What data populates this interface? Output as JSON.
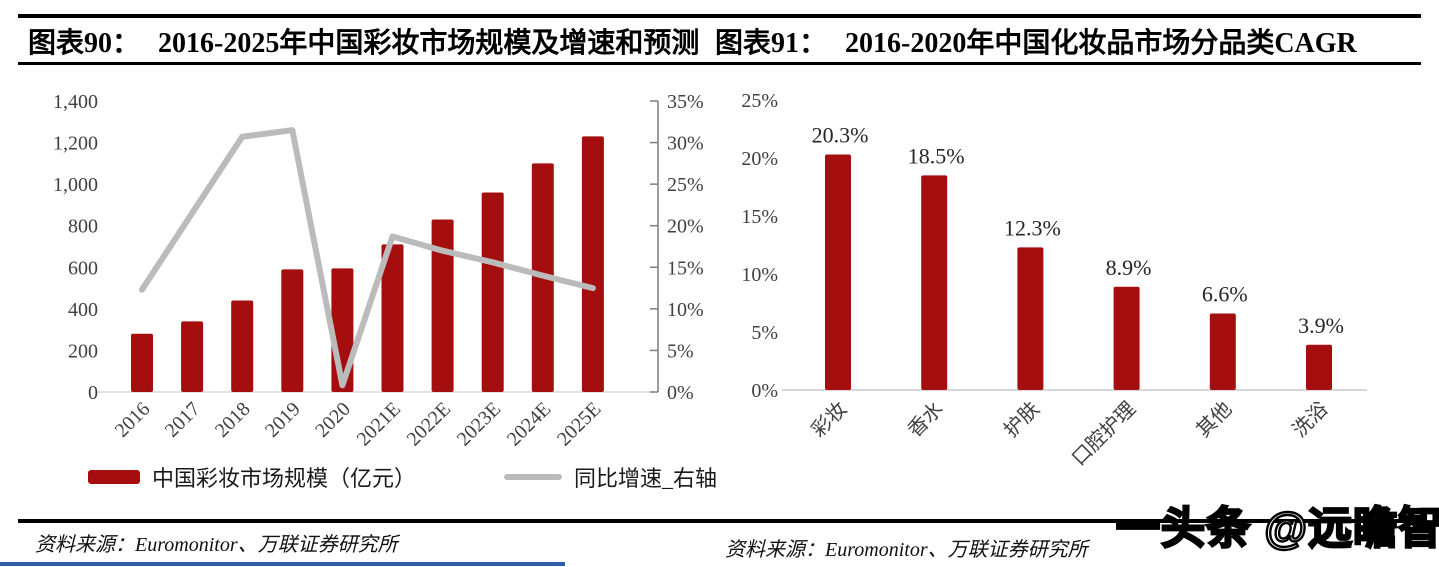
{
  "header": {
    "left_title_label": "图表90：",
    "left_title_text": "2016-2025年中国彩妆市场规模及增速和预测",
    "right_title_label": "图表91：",
    "right_title_text": "2016-2020年中国化妆品市场分品类CAGR"
  },
  "footer": {
    "left_source": "资料来源：Euromonitor、万联证券研究所",
    "right_source": "资料来源：Euromonitor、万联证券研究所",
    "watermark": "一头条 @远瞻智库"
  },
  "colors": {
    "bar_red": "#A40E0E",
    "line_gray": "#BBBBBB",
    "axis_text": "#404040",
    "axis_line": "#7F7F7F",
    "baseline_gray": "#D9D9D9",
    "rule_black": "#000000",
    "bottom_blue": "#2E5FA3"
  },
  "chart_data": [
    {
      "type": "combo-bar-line",
      "title": "2016-2025年中国彩妆市场规模及增速和预测",
      "categories": [
        "2016",
        "2017",
        "2018",
        "2019",
        "2020",
        "2021E",
        "2022E",
        "2023E",
        "2024E",
        "2025E"
      ],
      "series": [
        {
          "name": "中国彩妆市场规模（亿元）",
          "type": "bar",
          "axis": "left",
          "color": "#A40E0E",
          "values": [
            280,
            340,
            440,
            590,
            595,
            710,
            830,
            960,
            1100,
            1230
          ]
        },
        {
          "name": "同比增速_右轴",
          "type": "line",
          "axis": "right",
          "color": "#BBBBBB",
          "values": [
            12.3,
            21.5,
            30.7,
            31.5,
            0.8,
            18.7,
            17.0,
            15.6,
            14.0,
            12.5
          ]
        }
      ],
      "left_axis": {
        "min": 0,
        "max": 1400,
        "step": 200,
        "tick_labels": [
          "1,400",
          "1,200",
          "1,000",
          "800",
          "600",
          "400",
          "200",
          "0"
        ]
      },
      "right_axis": {
        "min": 0,
        "max": 35,
        "step": 5,
        "tick_labels": [
          "35%",
          "30%",
          "25%",
          "20%",
          "15%",
          "10%",
          "5%",
          "0%"
        ]
      },
      "legend_position": "bottom",
      "grid": false
    },
    {
      "type": "bar",
      "title": "2016-2020年中国化妆品市场分品类CAGR",
      "categories": [
        "彩妆",
        "香水",
        "护肤",
        "口腔护理",
        "其他",
        "洗浴"
      ],
      "values": [
        20.3,
        18.5,
        12.3,
        8.9,
        6.6,
        3.9
      ],
      "data_labels": [
        "20.3%",
        "18.5%",
        "12.3%",
        "8.9%",
        "6.6%",
        "3.9%"
      ],
      "bar_color": "#A40E0E",
      "y_axis": {
        "min": 0,
        "max": 25,
        "step": 5,
        "tick_labels": [
          "25%",
          "20%",
          "15%",
          "10%",
          "5%",
          "0%"
        ]
      },
      "legend_position": "none",
      "grid": false
    }
  ]
}
